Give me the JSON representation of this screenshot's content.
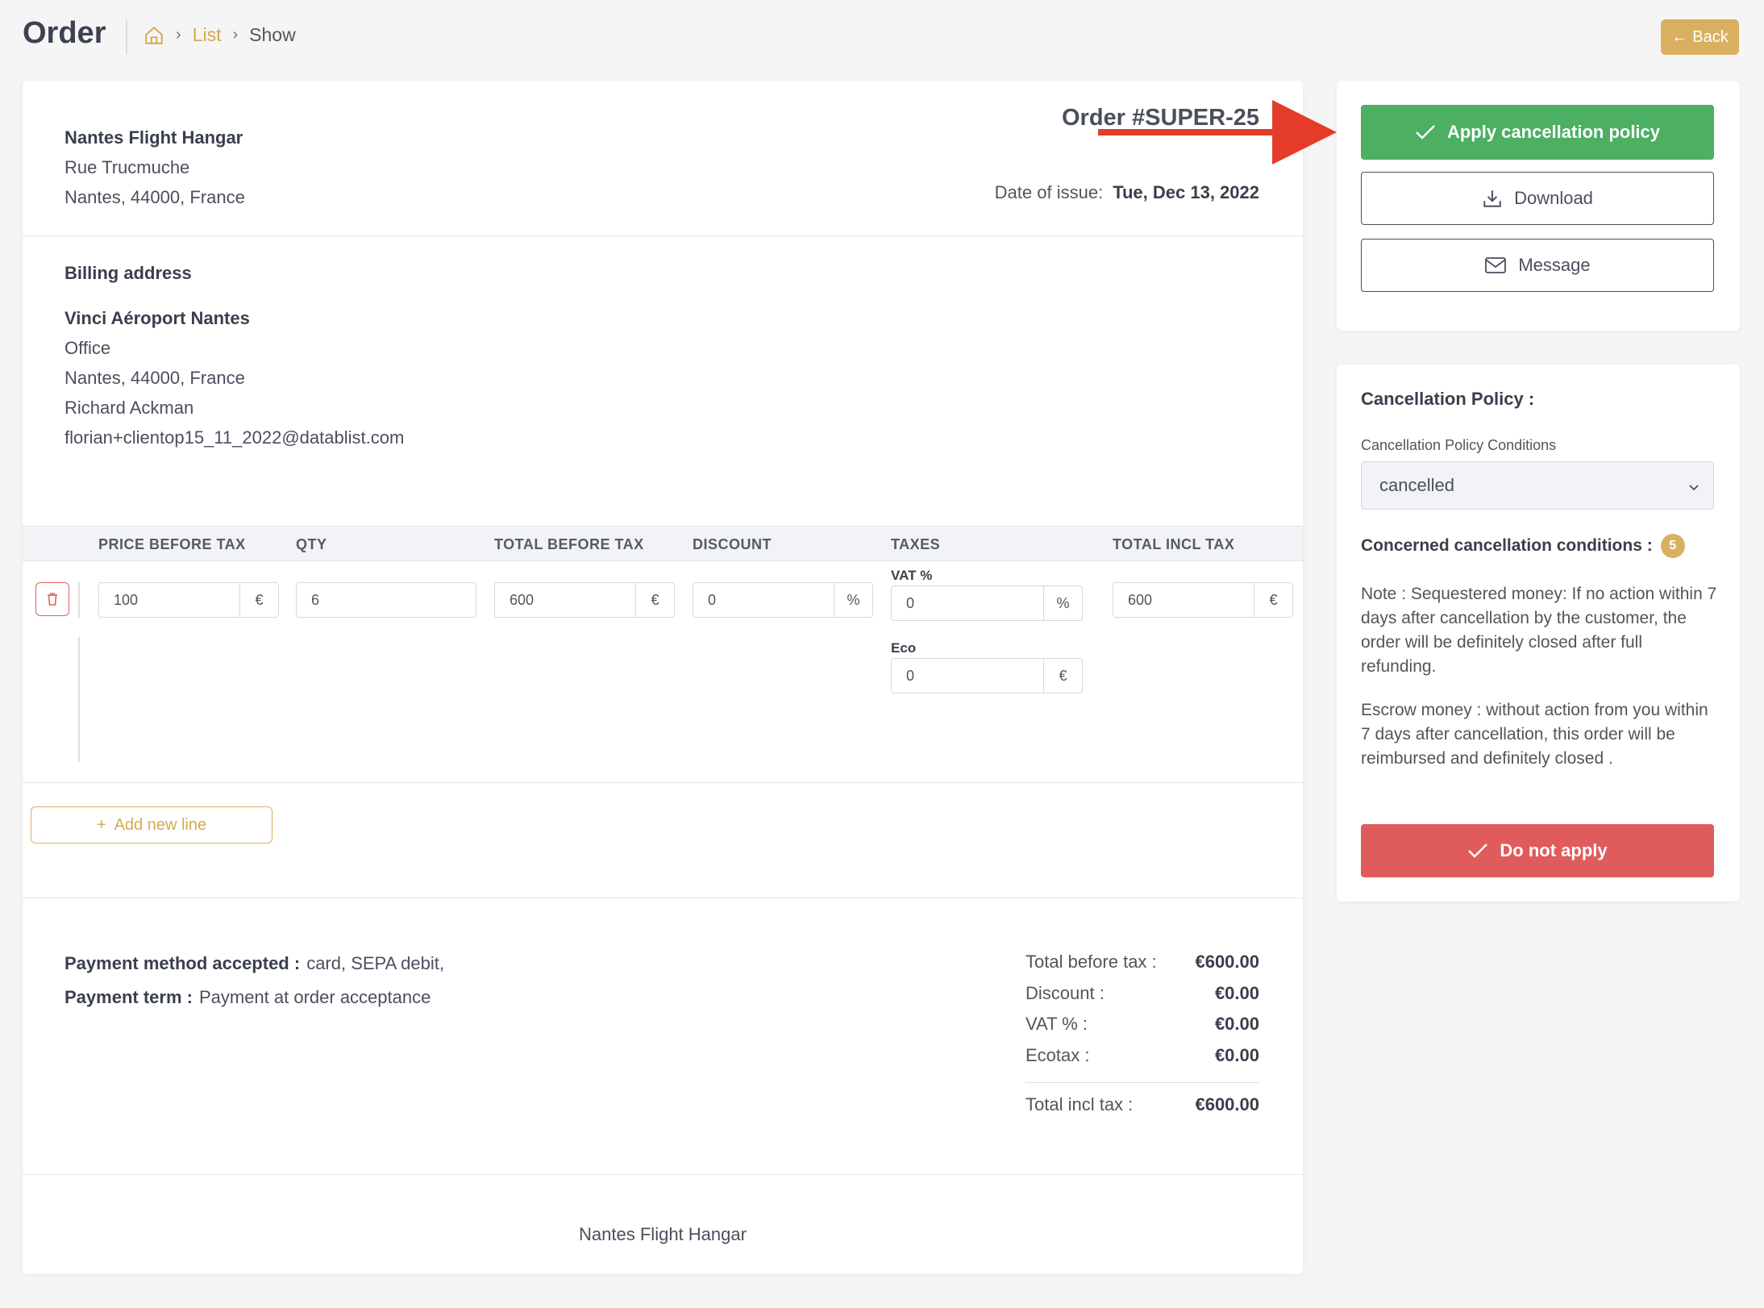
{
  "header": {
    "title": "Order",
    "breadcrumb": {
      "list": "List",
      "current": "Show"
    },
    "back_label": "Back"
  },
  "seller": {
    "name": "Nantes Flight Hangar",
    "street": "Rue Trucmuche",
    "city_line": "Nantes,  44000,  France"
  },
  "order": {
    "number": "Order #SUPER-25",
    "issue_label": "Date of issue:",
    "issue_date": "Tue, Dec 13, 2022"
  },
  "billing": {
    "title": "Billing address",
    "name": "Vinci Aéroport Nantes",
    "line2": "Office",
    "city_line": "Nantes,  44000,  France",
    "contact": "Richard Ackman",
    "email": "florian+clientop15_11_2022@datablist.com"
  },
  "table": {
    "headers": {
      "price": "PRICE BEFORE TAX",
      "qty": "QTY",
      "total_before": "TOTAL BEFORE TAX",
      "discount": "DISCOUNT",
      "taxes": "TAXES",
      "total_incl": "TOTAL INCL TAX"
    },
    "row": {
      "price": "100",
      "price_unit": "€",
      "qty": "6",
      "total_before": "600",
      "total_before_unit": "€",
      "discount": "0",
      "discount_unit": "%",
      "vat_label": "VAT %",
      "vat": "0",
      "vat_unit": "%",
      "eco_label": "Eco",
      "eco": "0",
      "eco_unit": "€",
      "total_incl": "600",
      "total_incl_unit": "€"
    },
    "add_line_label": "Add new line"
  },
  "payment": {
    "method_label": "Payment method accepted :",
    "method_value": "card, SEPA debit,",
    "term_label": "Payment term :",
    "term_value": "Payment at order acceptance"
  },
  "totals": {
    "before_tax_label": "Total before tax :",
    "before_tax": "€600.00",
    "discount_label": "Discount :",
    "discount": "€0.00",
    "vat_label": "VAT % :",
    "vat": "€0.00",
    "ecotax_label": "Ecotax :",
    "ecotax": "€0.00",
    "incl_tax_label": "Total incl tax :",
    "incl_tax": "€600.00"
  },
  "footer": {
    "name": "Nantes Flight Hangar"
  },
  "actions": {
    "apply_label": "Apply cancellation policy",
    "download_label": "Download",
    "message_label": "Message"
  },
  "policy": {
    "title": "Cancellation Policy :",
    "conditions_label": "Cancellation Policy Conditions",
    "selected": "cancelled",
    "concerned_label": "Concerned cancellation conditions :",
    "concerned_count": "5",
    "note1": "Note : Sequestered money: If no action within 7 days after cancellation by the customer, the order will be definitely closed after full refunding.",
    "note2": "Escrow money : without action from you within 7 days after cancellation, this order will be reimbursed and definitely closed .",
    "do_not_apply_label": "Do not apply"
  },
  "colors": {
    "accent": "#d9b060",
    "success": "#4caf62",
    "danger": "#e05c5c",
    "arrow": "#e53c2a"
  }
}
